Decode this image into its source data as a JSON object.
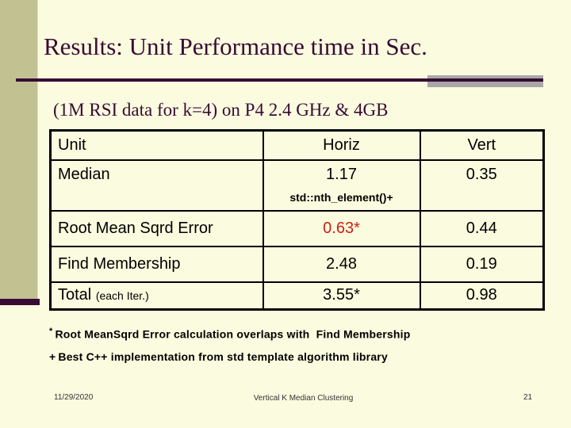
{
  "slide": {
    "title": "Results: Unit Performance time in Sec.",
    "subtitle": "(1M RSI data for k=4) on P4 2.4 GHz & 4GB"
  },
  "table": {
    "headers": [
      "Unit",
      "Horiz",
      "Vert"
    ],
    "rows": [
      {
        "unit": "Median",
        "horiz": "1.17",
        "horiz_note": "std::nth_element()+",
        "vert": "0.35"
      },
      {
        "unit": "Root Mean Sqrd Error",
        "horiz": "0.63*",
        "vert": "0.44"
      },
      {
        "unit": "Find Membership",
        "horiz": "2.48",
        "vert": "0.19"
      },
      {
        "unit": "Total",
        "unit_note": "(each Iter.)",
        "horiz": "3.55*",
        "vert": "0.98"
      }
    ]
  },
  "footnotes": [
    {
      "marker": "*",
      "text": "Root MeanSqrd Error calculation overlaps with  Find Membership"
    },
    {
      "marker": "+",
      "text": "Best C++ implementation from std template algorithm library"
    }
  ],
  "footer": {
    "date": "11/29/2020",
    "title": "Vertical K Median Clustering",
    "page_number": "21"
  },
  "colors": {
    "background": "#FBFBDF",
    "accent_bar": "#C1C192",
    "maroon": "#380B33",
    "gray_block": "#A8A8A8",
    "highlight_red": "#CC2211",
    "table_border": "#000000"
  }
}
